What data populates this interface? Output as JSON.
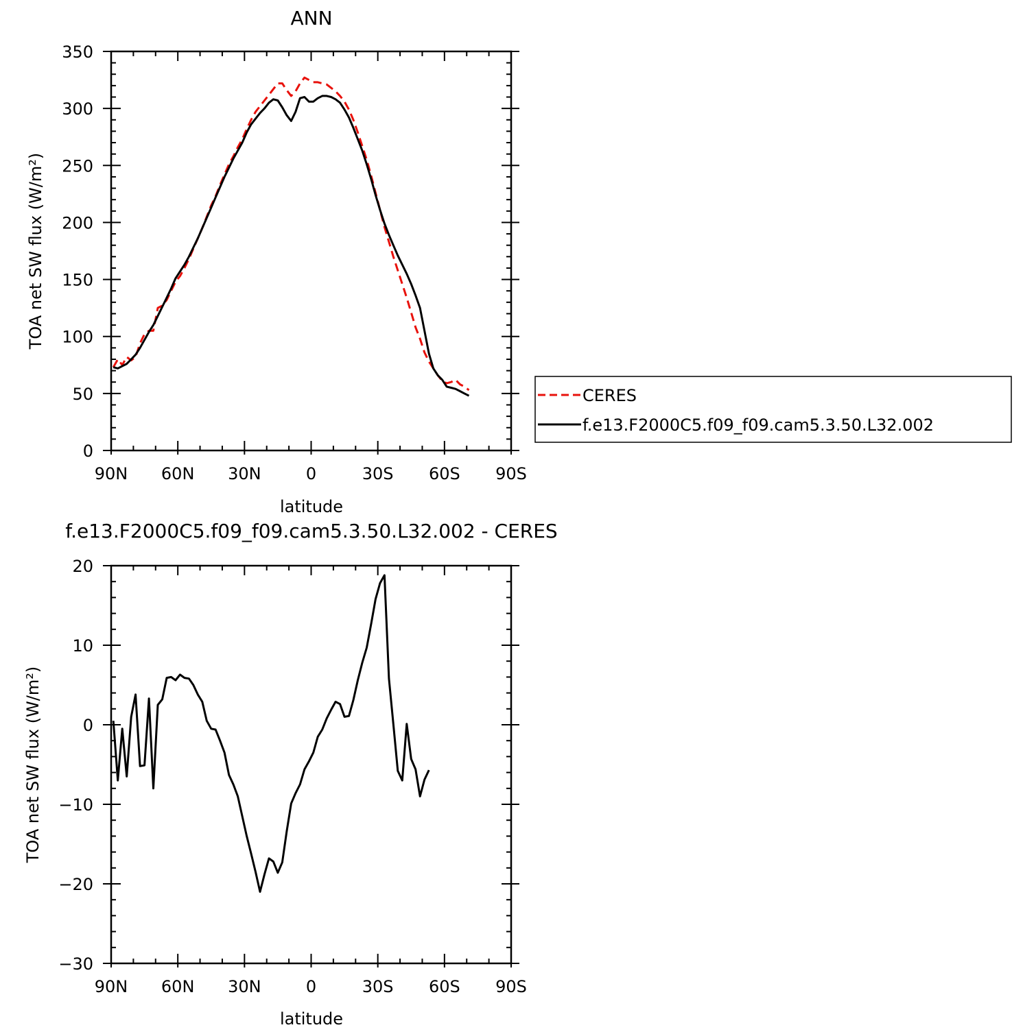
{
  "chart_data": [
    {
      "type": "line",
      "title": "ANN",
      "xlabel": "latitude",
      "ylabel": "TOA net SW flux (W/m²)",
      "xlim": [
        90,
        -90
      ],
      "ylim": [
        0,
        350
      ],
      "xticks": [
        {
          "value": 90,
          "label": "90N"
        },
        {
          "value": 60,
          "label": "60N"
        },
        {
          "value": 30,
          "label": "30N"
        },
        {
          "value": 0,
          "label": "0"
        },
        {
          "value": -30,
          "label": "30S"
        },
        {
          "value": -60,
          "label": "60S"
        },
        {
          "value": -90,
          "label": "90S"
        }
      ],
      "yticks": [
        {
          "value": 0,
          "label": "0"
        },
        {
          "value": 50,
          "label": "50"
        },
        {
          "value": 100,
          "label": "100"
        },
        {
          "value": 150,
          "label": "150"
        },
        {
          "value": 200,
          "label": "200"
        },
        {
          "value": 250,
          "label": "250"
        },
        {
          "value": 300,
          "label": "300"
        },
        {
          "value": 350,
          "label": "350"
        }
      ],
      "legend_position": "right",
      "series": [
        {
          "name": "CERES",
          "color": "#e8120c",
          "dash": "dashed",
          "points": [
            [
              89,
              73
            ],
            [
              87,
              80
            ],
            [
              85,
              75
            ],
            [
              83,
              82
            ],
            [
              81,
              79
            ],
            [
              79,
              82
            ],
            [
              77,
              94
            ],
            [
              75,
              102
            ],
            [
              73,
              105
            ],
            [
              71,
              105
            ],
            [
              69,
              125
            ],
            [
              67,
              127
            ],
            [
              65,
              132
            ],
            [
              63,
              140
            ],
            [
              61,
              148
            ],
            [
              59,
              153
            ],
            [
              57,
              160
            ],
            [
              55,
              168
            ],
            [
              53,
              177
            ],
            [
              51,
              186
            ],
            [
              49,
              195
            ],
            [
              47,
              205
            ],
            [
              45,
              215
            ],
            [
              43,
              223
            ],
            [
              41,
              233
            ],
            [
              39,
              242
            ],
            [
              37,
              251
            ],
            [
              35,
              258
            ],
            [
              33,
              266
            ],
            [
              31,
              273
            ],
            [
              29,
              282
            ],
            [
              27,
              290
            ],
            [
              25,
              297
            ],
            [
              23,
              302
            ],
            [
              21,
              307
            ],
            [
              19,
              312
            ],
            [
              17,
              317
            ],
            [
              15,
              322
            ],
            [
              13,
              322
            ],
            [
              11,
              316
            ],
            [
              9,
              311
            ],
            [
              7,
              315
            ],
            [
              5,
              322
            ],
            [
              3,
              327
            ],
            [
              1,
              325
            ],
            [
              -1,
              323
            ],
            [
              -3,
              323
            ],
            [
              -5,
              322
            ],
            [
              -7,
              321
            ],
            [
              -9,
              318
            ],
            [
              -11,
              315
            ],
            [
              -13,
              311
            ],
            [
              -15,
              306
            ],
            [
              -17,
              299
            ],
            [
              -19,
              290
            ],
            [
              -21,
              279
            ],
            [
              -23,
              267
            ],
            [
              -25,
              255
            ],
            [
              -27,
              241
            ],
            [
              -29,
              226
            ],
            [
              -31,
              211
            ],
            [
              -33,
              196
            ],
            [
              -35,
              183
            ],
            [
              -37,
              170
            ],
            [
              -39,
              158
            ],
            [
              -41,
              146
            ],
            [
              -43,
              134
            ],
            [
              -45,
              121
            ],
            [
              -47,
              108
            ],
            [
              -49,
              98
            ],
            [
              -51,
              86
            ],
            [
              -53,
              78
            ],
            [
              -55,
              72
            ],
            [
              -57,
              66
            ],
            [
              -59,
              61
            ],
            [
              -61,
              59
            ],
            [
              -63,
              60
            ],
            [
              -65,
              62
            ],
            [
              -67,
              58
            ],
            [
              -69,
              56
            ],
            [
              -71,
              53
            ]
          ]
        },
        {
          "name": "f.e13.F2000C5.f09_f09.cam5.3.50.L32.002",
          "color": "#000000",
          "dash": "solid",
          "points": [
            [
              89,
              73
            ],
            [
              87,
              72
            ],
            [
              85,
              74
            ],
            [
              83,
              76
            ],
            [
              81,
              80
            ],
            [
              79,
              84
            ],
            [
              77,
              90
            ],
            [
              75,
              97
            ],
            [
              73,
              104
            ],
            [
              71,
              110
            ],
            [
              69,
              118
            ],
            [
              67,
              126
            ],
            [
              65,
              134
            ],
            [
              63,
              142
            ],
            [
              61,
              151
            ],
            [
              59,
              157
            ],
            [
              57,
              163
            ],
            [
              55,
              170
            ],
            [
              53,
              178
            ],
            [
              51,
              186
            ],
            [
              49,
              195
            ],
            [
              47,
              204
            ],
            [
              45,
              213
            ],
            [
              43,
              222
            ],
            [
              41,
              231
            ],
            [
              39,
              240
            ],
            [
              37,
              248
            ],
            [
              35,
              256
            ],
            [
              33,
              263
            ],
            [
              31,
              270
            ],
            [
              29,
              279
            ],
            [
              27,
              286
            ],
            [
              25,
              291
            ],
            [
              23,
              296
            ],
            [
              21,
              300
            ],
            [
              19,
              305
            ],
            [
              17,
              308
            ],
            [
              15,
              307
            ],
            [
              13,
              301
            ],
            [
              11,
              294
            ],
            [
              9,
              289
            ],
            [
              7,
              297
            ],
            [
              5,
              309
            ],
            [
              3,
              310
            ],
            [
              1,
              306
            ],
            [
              -1,
              306
            ],
            [
              -3,
              309
            ],
            [
              -5,
              311
            ],
            [
              -7,
              311
            ],
            [
              -9,
              310
            ],
            [
              -11,
              308
            ],
            [
              -13,
              305
            ],
            [
              -15,
              299
            ],
            [
              -17,
              292
            ],
            [
              -19,
              283
            ],
            [
              -21,
              273
            ],
            [
              -23,
              263
            ],
            [
              -25,
              251
            ],
            [
              -27,
              238
            ],
            [
              -29,
              224
            ],
            [
              -31,
              211
            ],
            [
              -33,
              199
            ],
            [
              -35,
              189
            ],
            [
              -37,
              180
            ],
            [
              -39,
              171
            ],
            [
              -41,
              163
            ],
            [
              -43,
              155
            ],
            [
              -45,
              146
            ],
            [
              -47,
              136
            ],
            [
              -49,
              125
            ],
            [
              -51,
              105
            ],
            [
              -53,
              85
            ],
            [
              -55,
              72
            ],
            [
              -57,
              66
            ],
            [
              -59,
              62
            ],
            [
              -61,
              56
            ],
            [
              -63,
              55
            ],
            [
              -65,
              54
            ],
            [
              -67,
              52
            ],
            [
              -69,
              50
            ],
            [
              -71,
              48
            ]
          ]
        }
      ]
    },
    {
      "type": "line",
      "title": "f.e13.F2000C5.f09_f09.cam5.3.50.L32.002  -  CERES",
      "xlabel": "latitude",
      "ylabel": "TOA net SW flux (W/m²)",
      "xlim": [
        90,
        -90
      ],
      "ylim": [
        -30,
        20
      ],
      "xticks": [
        {
          "value": 90,
          "label": "90N"
        },
        {
          "value": 60,
          "label": "60N"
        },
        {
          "value": 30,
          "label": "30N"
        },
        {
          "value": 0,
          "label": "0"
        },
        {
          "value": -30,
          "label": "30S"
        },
        {
          "value": -60,
          "label": "60S"
        },
        {
          "value": -90,
          "label": "90S"
        }
      ],
      "yticks": [
        {
          "value": -30,
          "label": "−30"
        },
        {
          "value": -20,
          "label": "−20"
        },
        {
          "value": -10,
          "label": "−10"
        },
        {
          "value": 0,
          "label": "0"
        },
        {
          "value": 10,
          "label": "10"
        },
        {
          "value": 20,
          "label": "20"
        }
      ],
      "series": [
        {
          "color": "#000000",
          "dash": "solid",
          "points": [
            [
              89,
              0.5
            ],
            [
              87,
              -7
            ],
            [
              85,
              -0.5
            ],
            [
              83,
              -6.5
            ],
            [
              81,
              1
            ],
            [
              79,
              3.8
            ],
            [
              77,
              -5.2
            ],
            [
              75,
              -5.1
            ],
            [
              73,
              3.3
            ],
            [
              71,
              -8
            ],
            [
              69,
              2.5
            ],
            [
              67,
              3.2
            ],
            [
              65,
              5.9
            ],
            [
              63,
              6
            ],
            [
              61,
              5.6
            ],
            [
              59,
              6.3
            ],
            [
              57,
              5.9
            ],
            [
              55,
              5.8
            ],
            [
              53,
              5
            ],
            [
              51,
              3.8
            ],
            [
              49,
              2.9
            ],
            [
              47,
              0.5
            ],
            [
              45,
              -0.5
            ],
            [
              43,
              -0.6
            ],
            [
              41,
              -2
            ],
            [
              39,
              -3.5
            ],
            [
              37,
              -6.3
            ],
            [
              35,
              -7.5
            ],
            [
              33,
              -9
            ],
            [
              31,
              -11.5
            ],
            [
              29,
              -14
            ],
            [
              27,
              -16.2
            ],
            [
              25,
              -18.5
            ],
            [
              23,
              -21
            ],
            [
              21,
              -18.8
            ],
            [
              19,
              -16.8
            ],
            [
              17,
              -17.2
            ],
            [
              15,
              -18.6
            ],
            [
              13,
              -17.3
            ],
            [
              11,
              -13.4
            ],
            [
              9,
              -9.9
            ],
            [
              7,
              -8.6
            ],
            [
              5,
              -7.5
            ],
            [
              3,
              -5.6
            ],
            [
              1,
              -4.6
            ],
            [
              -1,
              -3.5
            ],
            [
              -3,
              -1.5
            ],
            [
              -5,
              -0.6
            ],
            [
              -7,
              0.8
            ],
            [
              -9,
              1.9
            ],
            [
              -11,
              2.9
            ],
            [
              -13,
              2.6
            ],
            [
              -15,
              1
            ],
            [
              -17,
              1.1
            ],
            [
              -19,
              3.1
            ],
            [
              -21,
              5.6
            ],
            [
              -23,
              7.8
            ],
            [
              -25,
              9.7
            ],
            [
              -27,
              12.7
            ],
            [
              -29,
              15.8
            ],
            [
              -31,
              17.8
            ],
            [
              -33,
              18.8
            ],
            [
              -35,
              5.8
            ],
            [
              -37,
              0.1
            ],
            [
              -39,
              -5.8
            ],
            [
              -41,
              -7
            ],
            [
              -43,
              0.1
            ],
            [
              -45,
              -4.3
            ],
            [
              -47,
              -5.6
            ],
            [
              -49,
              -9
            ],
            [
              -51,
              -6.9
            ],
            [
              -53,
              -5.7
            ]
          ]
        }
      ]
    }
  ]
}
